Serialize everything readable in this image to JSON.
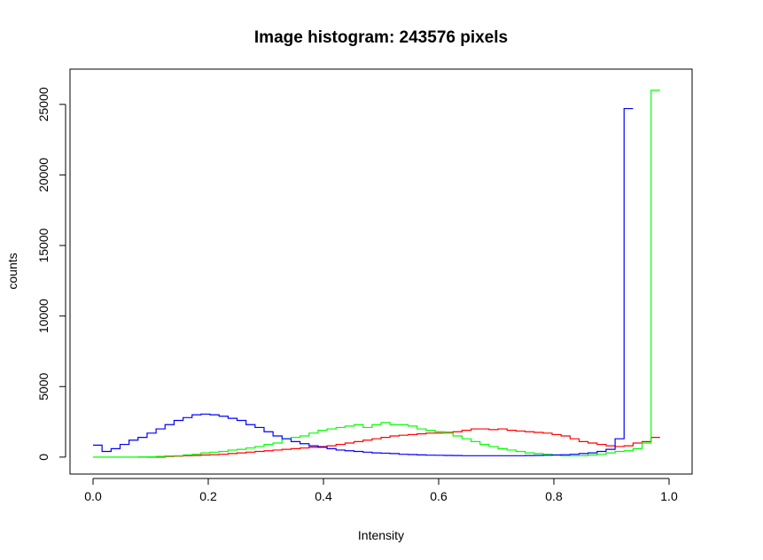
{
  "chart_data": {
    "type": "line",
    "title": "Image histogram: 243576 pixels",
    "xlabel": "Intensity",
    "ylabel": "counts",
    "xlim": [
      -0.04,
      1.04
    ],
    "ylim": [
      -1200,
      27500
    ],
    "x_ticks": [
      0,
      0.2,
      0.4,
      0.6,
      0.8,
      1.0
    ],
    "x_tick_labels": [
      "0.0",
      "0.2",
      "0.4",
      "0.6",
      "0.8",
      "1.0"
    ],
    "y_ticks": [
      0,
      5000,
      10000,
      15000,
      20000,
      25000
    ],
    "y_tick_labels": [
      "0",
      "5000",
      "10000",
      "15000",
      "20000",
      "25000"
    ],
    "grid": false,
    "bin_edges": [
      0.0,
      0.0156,
      0.0313,
      0.0469,
      0.0625,
      0.0781,
      0.0938,
      0.1094,
      0.125,
      0.1406,
      0.1563,
      0.1719,
      0.1875,
      0.2031,
      0.2188,
      0.2344,
      0.25,
      0.2656,
      0.2813,
      0.2969,
      0.3125,
      0.3281,
      0.3438,
      0.3594,
      0.375,
      0.3906,
      0.4063,
      0.4219,
      0.4375,
      0.4531,
      0.4688,
      0.4844,
      0.5,
      0.5156,
      0.5313,
      0.5469,
      0.5625,
      0.5781,
      0.5938,
      0.6094,
      0.625,
      0.6406,
      0.6563,
      0.6719,
      0.6875,
      0.7031,
      0.7188,
      0.7344,
      0.75,
      0.7656,
      0.7813,
      0.7969,
      0.8125,
      0.8281,
      0.8438,
      0.8594,
      0.875,
      0.8906,
      0.9063,
      0.9219,
      0.9375,
      0.9531,
      0.9688,
      0.9844,
      1.0
    ],
    "series": [
      {
        "color": "#ff0000",
        "start_bin": 5,
        "values": [
          0,
          0,
          0,
          50,
          70,
          100,
          120,
          150,
          170,
          200,
          250,
          300,
          350,
          400,
          450,
          500,
          550,
          600,
          650,
          700,
          750,
          800,
          900,
          1000,
          1100,
          1200,
          1300,
          1400,
          1500,
          1550,
          1600,
          1650,
          1700,
          1700,
          1750,
          1800,
          1900,
          2000,
          2000,
          1950,
          2000,
          1900,
          1850,
          1800,
          1750,
          1700,
          1600,
          1500,
          1300,
          1100,
          1000,
          900,
          800,
          750,
          800,
          1000,
          1100,
          1400
        ]
      },
      {
        "color": "#00ff00",
        "start_bin": 0,
        "values": [
          0,
          0,
          0,
          0,
          0,
          10,
          20,
          50,
          80,
          100,
          150,
          200,
          300,
          350,
          400,
          500,
          550,
          650,
          750,
          900,
          1000,
          1300,
          1400,
          1500,
          1700,
          1900,
          2000,
          2100,
          2200,
          2300,
          2100,
          2300,
          2450,
          2300,
          2300,
          2200,
          2000,
          1900,
          1800,
          1700,
          1500,
          1300,
          1100,
          900,
          750,
          600,
          500,
          400,
          300,
          250,
          200,
          150,
          100,
          100,
          100,
          150,
          200,
          300,
          400,
          450,
          600,
          1000,
          26000
        ]
      },
      {
        "color": "#0000ff",
        "start_bin": 0,
        "values": [
          850,
          400,
          600,
          900,
          1200,
          1400,
          1700,
          2000,
          2300,
          2600,
          2800,
          3000,
          3050,
          3000,
          2900,
          2750,
          2600,
          2300,
          2100,
          1800,
          1500,
          1300,
          1100,
          950,
          800,
          700,
          600,
          500,
          450,
          400,
          350,
          300,
          280,
          250,
          200,
          180,
          160,
          140,
          130,
          120,
          110,
          100,
          100,
          100,
          100,
          100,
          100,
          100,
          110,
          120,
          130,
          150,
          170,
          200,
          250,
          300,
          400,
          550,
          1300,
          24700
        ]
      }
    ]
  }
}
